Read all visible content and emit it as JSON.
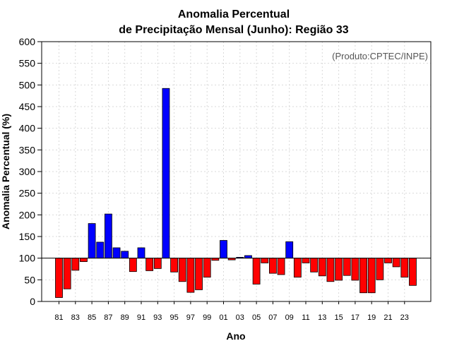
{
  "chart_data": {
    "type": "bar",
    "title": [
      "Anomalia Percentual",
      "de Precipitação Mensal (Junho): Região 33"
    ],
    "xlabel": "Ano",
    "ylabel": "Anomalia Percentual (%)",
    "source": "(Produto:CPTEC/INPE)",
    "ylim": [
      0,
      600
    ],
    "yticks": [
      0,
      50,
      100,
      150,
      200,
      250,
      300,
      350,
      400,
      450,
      500,
      550,
      600
    ],
    "baseline": 100,
    "grid": true,
    "colors": {
      "above": "#0000ff",
      "below": "#ff0000",
      "grid": "#d9d9d9"
    },
    "categories": [
      "81",
      "82",
      "83",
      "84",
      "85",
      "86",
      "87",
      "88",
      "89",
      "90",
      "91",
      "92",
      "93",
      "94",
      "95",
      "96",
      "97",
      "98",
      "99",
      "00",
      "01",
      "02",
      "03",
      "04",
      "05",
      "06",
      "07",
      "08",
      "09",
      "10",
      "11",
      "12",
      "13",
      "14",
      "15",
      "16",
      "17",
      "18",
      "19",
      "20",
      "21",
      "22",
      "23",
      "24"
    ],
    "xtick_labels": [
      "81",
      "83",
      "85",
      "87",
      "89",
      "91",
      "93",
      "95",
      "97",
      "99",
      "01",
      "03",
      "05",
      "07",
      "09",
      "11",
      "13",
      "15",
      "17",
      "19",
      "21",
      "23"
    ],
    "values": [
      9,
      29,
      72,
      92,
      180,
      137,
      202,
      124,
      116,
      69,
      124,
      71,
      76,
      492,
      68,
      46,
      21,
      27,
      56,
      95,
      141,
      96,
      102,
      106,
      40,
      89,
      65,
      62,
      138,
      56,
      89,
      68,
      59,
      46,
      49,
      60,
      49,
      20,
      20,
      50,
      89,
      80,
      56,
      37
    ]
  }
}
